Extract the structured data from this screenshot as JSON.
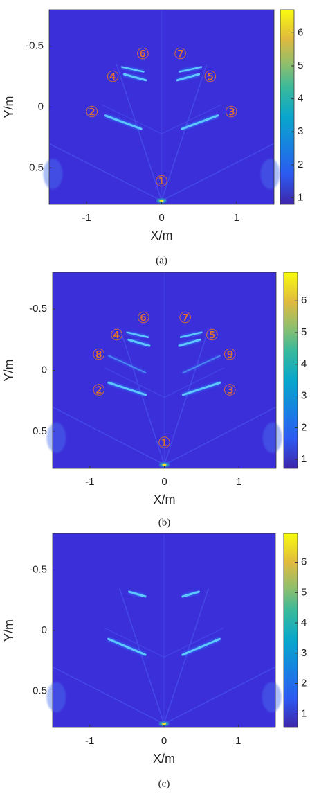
{
  "chart_data": [
    {
      "type": "heatmap",
      "caption": "(a)",
      "xlabel": "X/m",
      "ylabel": "Y/m",
      "xlim": [
        -1.5,
        1.5
      ],
      "ylim": [
        -0.8,
        0.8
      ],
      "y_reversed": true,
      "xticks": [
        -1,
        0,
        1
      ],
      "yticks": [
        -0.5,
        0,
        0.5
      ],
      "colorbar": {
        "clim": [
          0.8,
          6.7
        ],
        "ticks": [
          1,
          2,
          3,
          4,
          5,
          6
        ]
      },
      "annotations": [
        "①",
        "②",
        "③",
        "④",
        "⑤",
        "⑥",
        "⑦"
      ]
    },
    {
      "type": "heatmap",
      "caption": "(b)",
      "xlabel": "X/m",
      "ylabel": "Y/m",
      "xlim": [
        -1.5,
        1.5
      ],
      "ylim": [
        -0.8,
        0.8
      ],
      "y_reversed": true,
      "xticks": [
        -1,
        0,
        1
      ],
      "yticks": [
        -0.5,
        0,
        0.5
      ],
      "colorbar": {
        "clim": [
          0.72,
          6.9
        ],
        "ticks": [
          1,
          2,
          3,
          4,
          5,
          6
        ]
      },
      "annotations": [
        "①",
        "②",
        "③",
        "④",
        "⑤",
        "⑥",
        "⑦",
        "⑧",
        "⑨"
      ]
    },
    {
      "type": "heatmap",
      "caption": "(c)",
      "xlabel": "X/m",
      "ylabel": "Y/m",
      "xlim": [
        -1.5,
        1.5
      ],
      "ylim": [
        -0.8,
        0.8
      ],
      "y_reversed": true,
      "xticks": [
        -1,
        0,
        1
      ],
      "yticks": [
        -0.5,
        0,
        0.5
      ],
      "colorbar": {
        "clim": [
          0.55,
          6.95
        ],
        "ticks": [
          1,
          2,
          3,
          4,
          5,
          6
        ]
      },
      "annotations": []
    }
  ]
}
